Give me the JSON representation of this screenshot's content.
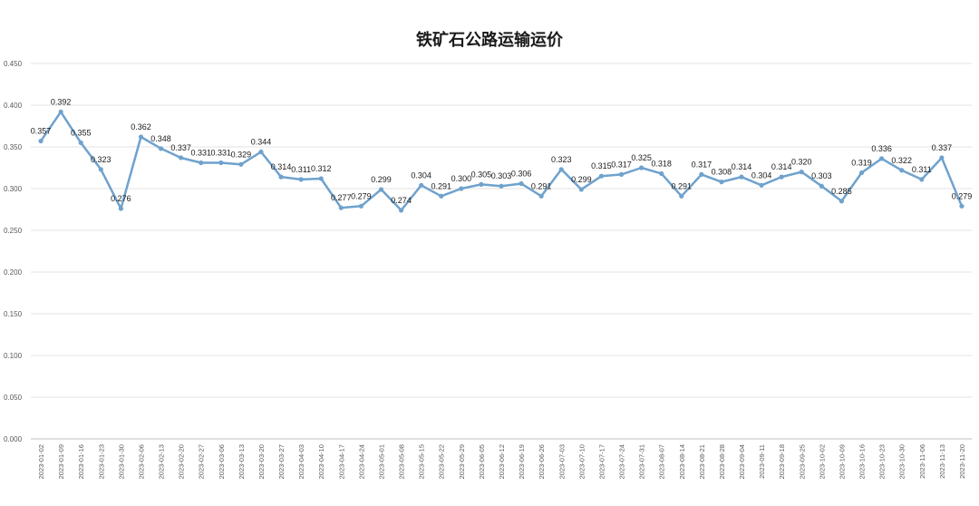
{
  "chart_data": {
    "type": "line",
    "title": "铁矿石公路运输运价",
    "xlabel": "",
    "ylabel": "",
    "ylim": [
      0,
      0.45
    ],
    "ytick_step": 0.05,
    "grid": true,
    "legend": "none",
    "color": "#6fa2cd",
    "x": [
      "2023-01-02",
      "2023-01-09",
      "2023-01-16",
      "2023-01-23",
      "2023-01-30",
      "2023-02-06",
      "2023-02-13",
      "2023-02-20",
      "2023-02-27",
      "2023-03-06",
      "2023-03-13",
      "2023-03-20",
      "2023-03-27",
      "2023-04-03",
      "2023-04-10",
      "2023-04-17",
      "2023-04-24",
      "2023-05-01",
      "2023-05-08",
      "2023-05-15",
      "2023-05-22",
      "2023-05-29",
      "2023-06-05",
      "2023-06-12",
      "2023-06-19",
      "2023-06-26",
      "2023-07-03",
      "2023-07-10",
      "2023-07-17",
      "2023-07-24",
      "2023-07-31",
      "2023-08-07",
      "2023-08-14",
      "2023-08-21",
      "2023-08-28",
      "2023-09-04",
      "2023-09-11",
      "2023-09-18",
      "2023-09-25",
      "2023-10-02",
      "2023-10-09",
      "2023-10-16",
      "2023-10-23",
      "2023-10-30",
      "2023-11-06",
      "2023-11-13",
      "2023-11-20"
    ],
    "values": [
      0.357,
      0.392,
      0.355,
      0.323,
      0.276,
      0.362,
      0.348,
      0.337,
      0.331,
      0.331,
      0.329,
      0.344,
      0.314,
      0.311,
      0.312,
      0.277,
      0.279,
      0.299,
      0.274,
      0.304,
      0.291,
      0.3,
      0.305,
      0.303,
      0.306,
      0.291,
      0.323,
      0.299,
      0.315,
      0.317,
      0.325,
      0.318,
      0.291,
      0.317,
      0.308,
      0.314,
      0.304,
      0.314,
      0.32,
      0.303,
      0.285,
      0.319,
      0.336,
      0.322,
      0.311,
      0.337,
      0.279
    ]
  }
}
